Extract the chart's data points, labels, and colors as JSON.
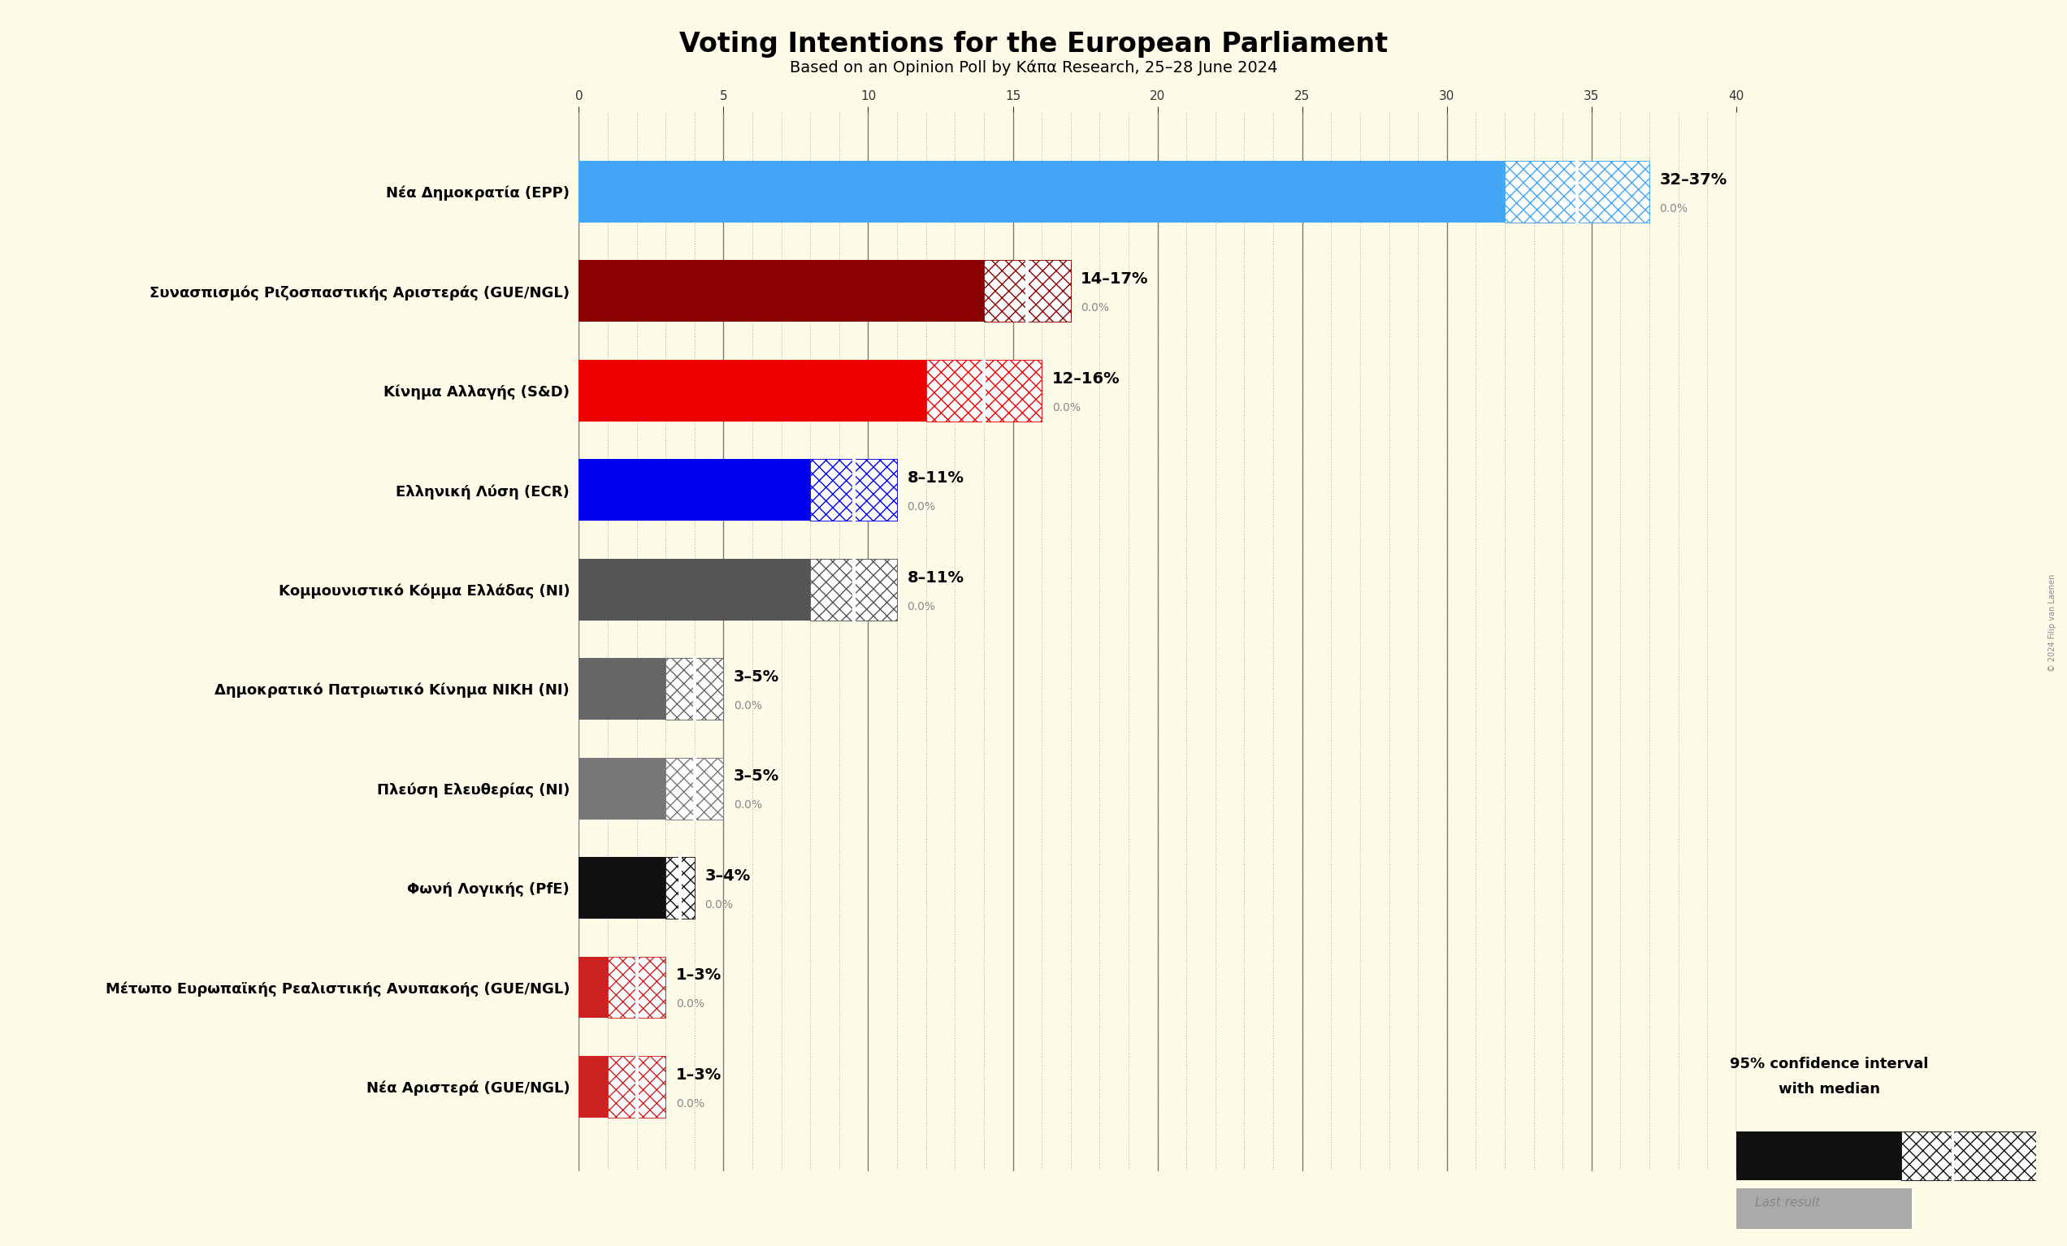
{
  "title": "Voting Intentions for the European Parliament",
  "subtitle": "Based on an Opinion Poll by Κάπα Research, 25–28 June 2024",
  "background_color": "#FEFCE8",
  "parties": [
    {
      "name": "Νέα Δημοκρατία (EPP)",
      "low": 32,
      "high": 37,
      "median": 34.5,
      "last": 0.0,
      "solid_color": "#42A5F5",
      "hatch_color": "#42A5F5",
      "label": "32–37%"
    },
    {
      "name": "Συνασπισμός Ριζοσπαστικής Αριστεράς (GUE/NGL)",
      "low": 14,
      "high": 17,
      "median": 15.5,
      "last": 0.0,
      "solid_color": "#8B0000",
      "hatch_color": "#8B0000",
      "label": "14–17%"
    },
    {
      "name": "Κίνημα Αλλαγής (S&D)",
      "low": 12,
      "high": 16,
      "median": 14,
      "last": 0.0,
      "solid_color": "#EE0000",
      "hatch_color": "#EE0000",
      "label": "12–16%"
    },
    {
      "name": "Ελληνική Λύση (ECR)",
      "low": 8,
      "high": 11,
      "median": 9.5,
      "last": 0.0,
      "solid_color": "#0000EE",
      "hatch_color": "#0000EE",
      "label": "8–11%"
    },
    {
      "name": "Κομμουνιστικό Κόμμα Ελλάδας (NI)",
      "low": 8,
      "high": 11,
      "median": 9.5,
      "last": 0.0,
      "solid_color": "#555555",
      "hatch_color": "#555555",
      "label": "8–11%"
    },
    {
      "name": "Δημοκρατικό Πατριωτικό Κίνημα ΝΙΚΗ (NI)",
      "low": 3,
      "high": 5,
      "median": 4,
      "last": 0.0,
      "solid_color": "#666666",
      "hatch_color": "#666666",
      "label": "3–5%"
    },
    {
      "name": "Πλεύση Ελευθερίας (NI)",
      "low": 3,
      "high": 5,
      "median": 4,
      "last": 0.0,
      "solid_color": "#777777",
      "hatch_color": "#777777",
      "label": "3–5%"
    },
    {
      "name": "Φωνή Λογικής (PfE)",
      "low": 3,
      "high": 4,
      "median": 3.5,
      "last": 0.0,
      "solid_color": "#111111",
      "hatch_color": "#111111",
      "label": "3–4%"
    },
    {
      "name": "Μέτωπο Ευρωπαϊκής Ρεαλιστικής Ανυπακοής (GUE/NGL)",
      "low": 1,
      "high": 3,
      "median": 2,
      "last": 0.0,
      "solid_color": "#CC2222",
      "hatch_color": "#CC2222",
      "label": "1–3%"
    },
    {
      "name": "Νέα Αριστερά (GUE/NGL)",
      "low": 1,
      "high": 3,
      "median": 2,
      "last": 0.0,
      "solid_color": "#CC2222",
      "hatch_color": "#CC2222",
      "label": "1–3%"
    }
  ],
  "xlim": [
    0,
    40
  ],
  "tick_interval": 5,
  "copyright": "© 2024 Filip van Laenen",
  "legend_ci_line1": "95% confidence interval",
  "legend_ci_line2": "with median",
  "legend_last": "Last result"
}
